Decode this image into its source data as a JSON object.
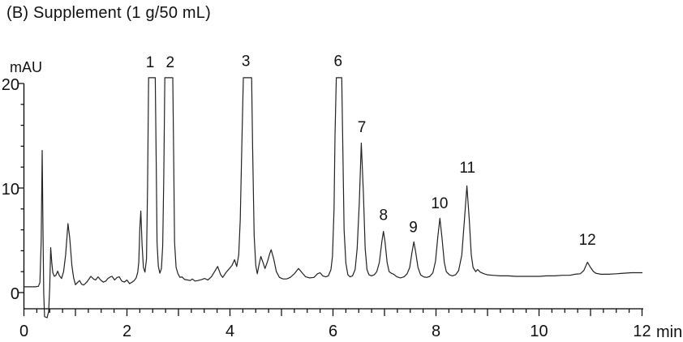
{
  "header": {
    "title": "(B) Supplement (1 g/50 mL)"
  },
  "chart_data": {
    "type": "line",
    "title": "(B) Supplement (1 g/50 mL)",
    "grid": false,
    "legend": false,
    "y_axis": {
      "unit": "mAU",
      "major_ticks": [
        0,
        10,
        20
      ],
      "minor_tick_step": 2,
      "minor_tick_max": 20,
      "range_shown": [
        -2.5,
        21
      ]
    },
    "x_axis": {
      "unit": "min",
      "major_ticks": [
        0,
        1,
        2,
        3,
        4,
        5,
        6,
        7,
        8,
        9,
        10,
        11,
        12
      ],
      "labeled_ticks": [
        0,
        2,
        4,
        6,
        8,
        10,
        12
      ],
      "minor_tick_step": 0.25,
      "range": [
        0,
        12
      ]
    },
    "saturation_level_mAU": 20.55,
    "peaks": [
      {
        "label": "1",
        "retention_min": 2.48,
        "apex_mAU": 20.6,
        "saturated": true,
        "label_t": 2.45,
        "label_v": 22.1
      },
      {
        "label": "2",
        "retention_min": 2.82,
        "apex_mAU": 20.6,
        "saturated": true,
        "label_t": 2.84,
        "label_v": 22.1
      },
      {
        "label": "3",
        "retention_min": 4.35,
        "apex_mAU": 20.6,
        "saturated": true,
        "label_t": 4.31,
        "label_v": 22.2
      },
      {
        "label": "6",
        "retention_min": 6.12,
        "apex_mAU": 20.6,
        "saturated": true,
        "label_t": 6.1,
        "label_v": 22.2
      },
      {
        "label": "7",
        "retention_min": 6.55,
        "apex_mAU": 14.3,
        "saturated": false,
        "label_t": 6.56,
        "label_v": 15.9
      },
      {
        "label": "8",
        "retention_min": 6.98,
        "apex_mAU": 5.9,
        "saturated": false,
        "label_t": 6.98,
        "label_v": 7.5
      },
      {
        "label": "9",
        "retention_min": 7.57,
        "apex_mAU": 4.9,
        "saturated": false,
        "label_t": 7.56,
        "label_v": 6.3
      },
      {
        "label": "10",
        "retention_min": 8.08,
        "apex_mAU": 7.1,
        "saturated": false,
        "label_t": 8.07,
        "label_v": 8.6
      },
      {
        "label": "11",
        "retention_min": 8.6,
        "apex_mAU": 10.2,
        "saturated": false,
        "label_t": 8.61,
        "label_v": 12.0
      },
      {
        "label": "12",
        "retention_min": 10.94,
        "apex_mAU": 2.9,
        "saturated": false,
        "label_t": 10.94,
        "label_v": 5.1
      }
    ],
    "series": [
      {
        "name": "UV absorbance trace",
        "color": "#222222",
        "points": [
          [
            0,
            0.55
          ],
          [
            0.12,
            0.55
          ],
          [
            0.22,
            0.55
          ],
          [
            0.28,
            0.6
          ],
          [
            0.31,
            0.95
          ],
          [
            0.335,
            5
          ],
          [
            0.355,
            13.6
          ],
          [
            0.37,
            6
          ],
          [
            0.385,
            0
          ],
          [
            0.4,
            -2.3
          ],
          [
            0.45,
            -2.4
          ],
          [
            0.48,
            -1.8
          ],
          [
            0.5,
            0.5
          ],
          [
            0.52,
            4.3
          ],
          [
            0.54,
            2.9
          ],
          [
            0.56,
            1.9
          ],
          [
            0.59,
            1.55
          ],
          [
            0.62,
            1.65
          ],
          [
            0.655,
            2.05
          ],
          [
            0.69,
            1.6
          ],
          [
            0.73,
            1.35
          ],
          [
            0.77,
            2.0
          ],
          [
            0.81,
            3.6
          ],
          [
            0.855,
            6.6
          ],
          [
            0.89,
            5.2
          ],
          [
            0.93,
            2.6
          ],
          [
            0.965,
            1.4
          ],
          [
            1.0,
            0.75
          ],
          [
            1.04,
            0.95
          ],
          [
            1.08,
            1.15
          ],
          [
            1.12,
            0.8
          ],
          [
            1.16,
            0.72
          ],
          [
            1.22,
            1.0
          ],
          [
            1.3,
            1.55
          ],
          [
            1.35,
            1.3
          ],
          [
            1.39,
            1.2
          ],
          [
            1.44,
            1.5
          ],
          [
            1.49,
            1.2
          ],
          [
            1.54,
            1.0
          ],
          [
            1.59,
            1.1
          ],
          [
            1.63,
            1.35
          ],
          [
            1.68,
            1.5
          ],
          [
            1.71,
            1.55
          ],
          [
            1.76,
            1.2
          ],
          [
            1.81,
            1.45
          ],
          [
            1.85,
            1.5
          ],
          [
            1.9,
            1.1
          ],
          [
            1.95,
            1.0
          ],
          [
            2.0,
            1.2
          ],
          [
            2.05,
            0.85
          ],
          [
            2.1,
            1.0
          ],
          [
            2.14,
            1.15
          ],
          [
            2.18,
            1.4
          ],
          [
            2.21,
            1.95
          ],
          [
            2.23,
            2.9
          ],
          [
            2.25,
            6.2
          ],
          [
            2.27,
            7.8
          ],
          [
            2.295,
            4.5
          ],
          [
            2.32,
            2.4
          ],
          [
            2.35,
            1.95
          ],
          [
            2.38,
            3.2
          ],
          [
            2.4,
            10
          ],
          [
            2.42,
            20.55
          ],
          [
            2.55,
            20.55
          ],
          [
            2.567,
            13
          ],
          [
            2.585,
            4.8
          ],
          [
            2.61,
            2.5
          ],
          [
            2.64,
            1.85
          ],
          [
            2.67,
            2.3
          ],
          [
            2.695,
            4.5
          ],
          [
            2.715,
            11
          ],
          [
            2.735,
            20.55
          ],
          [
            2.89,
            20.55
          ],
          [
            2.907,
            13
          ],
          [
            2.925,
            4.8
          ],
          [
            2.955,
            2.4
          ],
          [
            2.99,
            1.8
          ],
          [
            3.03,
            1.45
          ],
          [
            3.07,
            1.5
          ],
          [
            3.12,
            1.25
          ],
          [
            3.18,
            1.2
          ],
          [
            3.23,
            1.15
          ],
          [
            3.27,
            1.3
          ],
          [
            3.32,
            1.1
          ],
          [
            3.38,
            1.15
          ],
          [
            3.45,
            1.25
          ],
          [
            3.51,
            1.35
          ],
          [
            3.57,
            1.2
          ],
          [
            3.64,
            1.5
          ],
          [
            3.7,
            2.0
          ],
          [
            3.76,
            2.5
          ],
          [
            3.82,
            1.7
          ],
          [
            3.86,
            1.45
          ],
          [
            3.92,
            1.9
          ],
          [
            3.99,
            2.3
          ],
          [
            4.04,
            2.6
          ],
          [
            4.09,
            3.15
          ],
          [
            4.13,
            2.5
          ],
          [
            4.17,
            3.6
          ],
          [
            4.2,
            7
          ],
          [
            4.23,
            14
          ],
          [
            4.26,
            20.55
          ],
          [
            4.42,
            20.55
          ],
          [
            4.44,
            14
          ],
          [
            4.47,
            5.5
          ],
          [
            4.5,
            2.6
          ],
          [
            4.53,
            1.8
          ],
          [
            4.565,
            2.7
          ],
          [
            4.6,
            3.45
          ],
          [
            4.64,
            2.9
          ],
          [
            4.68,
            2.3
          ],
          [
            4.73,
            3.0
          ],
          [
            4.77,
            3.7
          ],
          [
            4.8,
            4.1
          ],
          [
            4.85,
            3.2
          ],
          [
            4.9,
            2.0
          ],
          [
            4.96,
            1.45
          ],
          [
            5.03,
            1.3
          ],
          [
            5.1,
            1.3
          ],
          [
            5.17,
            1.45
          ],
          [
            5.25,
            1.8
          ],
          [
            5.33,
            2.3
          ],
          [
            5.4,
            1.9
          ],
          [
            5.47,
            1.5
          ],
          [
            5.55,
            1.4
          ],
          [
            5.63,
            1.45
          ],
          [
            5.7,
            1.8
          ],
          [
            5.75,
            1.9
          ],
          [
            5.8,
            1.6
          ],
          [
            5.86,
            1.5
          ],
          [
            5.91,
            1.6
          ],
          [
            5.96,
            2.2
          ],
          [
            5.99,
            3.5
          ],
          [
            6.02,
            8
          ],
          [
            6.04,
            15
          ],
          [
            6.065,
            20.55
          ],
          [
            6.17,
            20.55
          ],
          [
            6.19,
            14
          ],
          [
            6.215,
            6
          ],
          [
            6.25,
            2.8
          ],
          [
            6.29,
            1.7
          ],
          [
            6.33,
            1.5
          ],
          [
            6.38,
            1.6
          ],
          [
            6.43,
            2.2
          ],
          [
            6.47,
            4.2
          ],
          [
            6.51,
            8.5
          ],
          [
            6.55,
            14.3
          ],
          [
            6.59,
            9.5
          ],
          [
            6.625,
            4.2
          ],
          [
            6.66,
            2.2
          ],
          [
            6.7,
            1.7
          ],
          [
            6.75,
            1.6
          ],
          [
            6.8,
            1.7
          ],
          [
            6.85,
            2.0
          ],
          [
            6.9,
            2.9
          ],
          [
            6.95,
            4.9
          ],
          [
            6.98,
            5.85
          ],
          [
            7.01,
            4.9
          ],
          [
            7.05,
            2.9
          ],
          [
            7.09,
            2.0
          ],
          [
            7.13,
            1.85
          ],
          [
            7.18,
            1.75
          ],
          [
            7.24,
            1.5
          ],
          [
            7.31,
            1.4
          ],
          [
            7.38,
            1.5
          ],
          [
            7.44,
            1.8
          ],
          [
            7.49,
            2.4
          ],
          [
            7.535,
            3.9
          ],
          [
            7.57,
            4.85
          ],
          [
            7.605,
            3.9
          ],
          [
            7.65,
            2.4
          ],
          [
            7.7,
            1.7
          ],
          [
            7.76,
            1.5
          ],
          [
            7.82,
            1.45
          ],
          [
            7.88,
            1.55
          ],
          [
            7.94,
            1.9
          ],
          [
            7.99,
            3.0
          ],
          [
            8.035,
            5.3
          ],
          [
            8.075,
            7.1
          ],
          [
            8.115,
            5.3
          ],
          [
            8.16,
            2.9
          ],
          [
            8.2,
            2.0
          ],
          [
            8.26,
            1.7
          ],
          [
            8.32,
            1.6
          ],
          [
            8.38,
            1.7
          ],
          [
            8.44,
            2.1
          ],
          [
            8.5,
            3.6
          ],
          [
            8.55,
            6.8
          ],
          [
            8.6,
            10.2
          ],
          [
            8.645,
            7.0
          ],
          [
            8.685,
            3.6
          ],
          [
            8.72,
            2.4
          ],
          [
            8.77,
            2.0
          ],
          [
            8.81,
            2.2
          ],
          [
            8.86,
            1.95
          ],
          [
            8.93,
            1.8
          ],
          [
            9.0,
            1.7
          ],
          [
            9.1,
            1.65
          ],
          [
            9.25,
            1.6
          ],
          [
            9.4,
            1.6
          ],
          [
            9.55,
            1.55
          ],
          [
            9.7,
            1.55
          ],
          [
            9.85,
            1.55
          ],
          [
            10.0,
            1.55
          ],
          [
            10.15,
            1.6
          ],
          [
            10.3,
            1.6
          ],
          [
            10.45,
            1.65
          ],
          [
            10.6,
            1.65
          ],
          [
            10.7,
            1.75
          ],
          [
            10.8,
            1.8
          ],
          [
            10.87,
            2.1
          ],
          [
            10.94,
            2.9
          ],
          [
            11.0,
            2.4
          ],
          [
            11.05,
            2.05
          ],
          [
            11.1,
            1.85
          ],
          [
            11.2,
            1.75
          ],
          [
            11.35,
            1.75
          ],
          [
            11.5,
            1.8
          ],
          [
            11.65,
            1.85
          ],
          [
            11.8,
            1.9
          ],
          [
            12.0,
            1.9
          ]
        ]
      }
    ]
  }
}
